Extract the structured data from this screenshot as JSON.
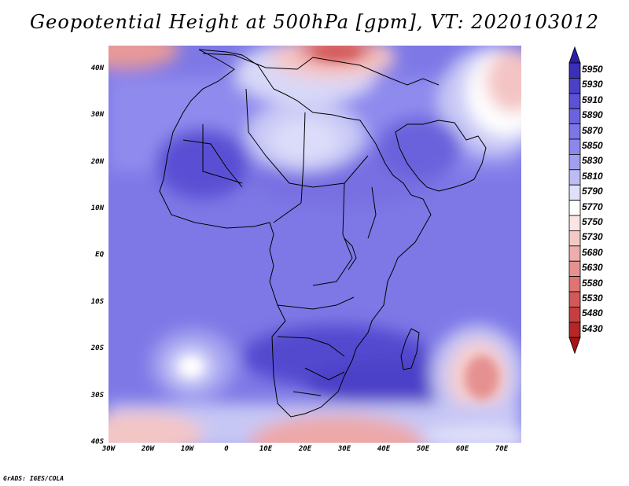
{
  "title": "Geopotential Height at 500hPa [gpm], VT: 2020103012",
  "map": {
    "lat_labels": [
      "40N",
      "30N",
      "20N",
      "10N",
      "EQ",
      "10S",
      "20S",
      "30S",
      "40S"
    ],
    "lat_values": [
      40,
      30,
      20,
      10,
      0,
      -10,
      -20,
      -30,
      -40
    ],
    "lon_labels": [
      "30W",
      "20W",
      "10W",
      "0",
      "10E",
      "20E",
      "30E",
      "40E",
      "50E",
      "60E",
      "70E"
    ],
    "lon_values": [
      -30,
      -20,
      -10,
      0,
      10,
      20,
      30,
      40,
      50,
      60,
      70
    ],
    "lon_range": [
      -30,
      75
    ],
    "lat_range": [
      -40,
      45
    ]
  },
  "colorbar": {
    "levels": [
      "5950",
      "5930",
      "5910",
      "5890",
      "5870",
      "5850",
      "5830",
      "5810",
      "5790",
      "5770",
      "5750",
      "5730",
      "5680",
      "5630",
      "5580",
      "5530",
      "5480",
      "5430"
    ],
    "colors": [
      "#3a2fb8",
      "#4b40c8",
      "#5b52d6",
      "#6b63de",
      "#7b75e6",
      "#8c87ec",
      "#a19ff0",
      "#bdbdf5",
      "#dfe0fa",
      "#ffffff",
      "#fbe4e4",
      "#f5c8c8",
      "#efacac",
      "#e79090",
      "#de7474",
      "#d35858",
      "#c63e3e",
      "#b52626"
    ],
    "top_arrow_color": "#2a1fa8",
    "bottom_arrow_color": "#a51414"
  },
  "credit": "GrADS: IGES/COLA"
}
